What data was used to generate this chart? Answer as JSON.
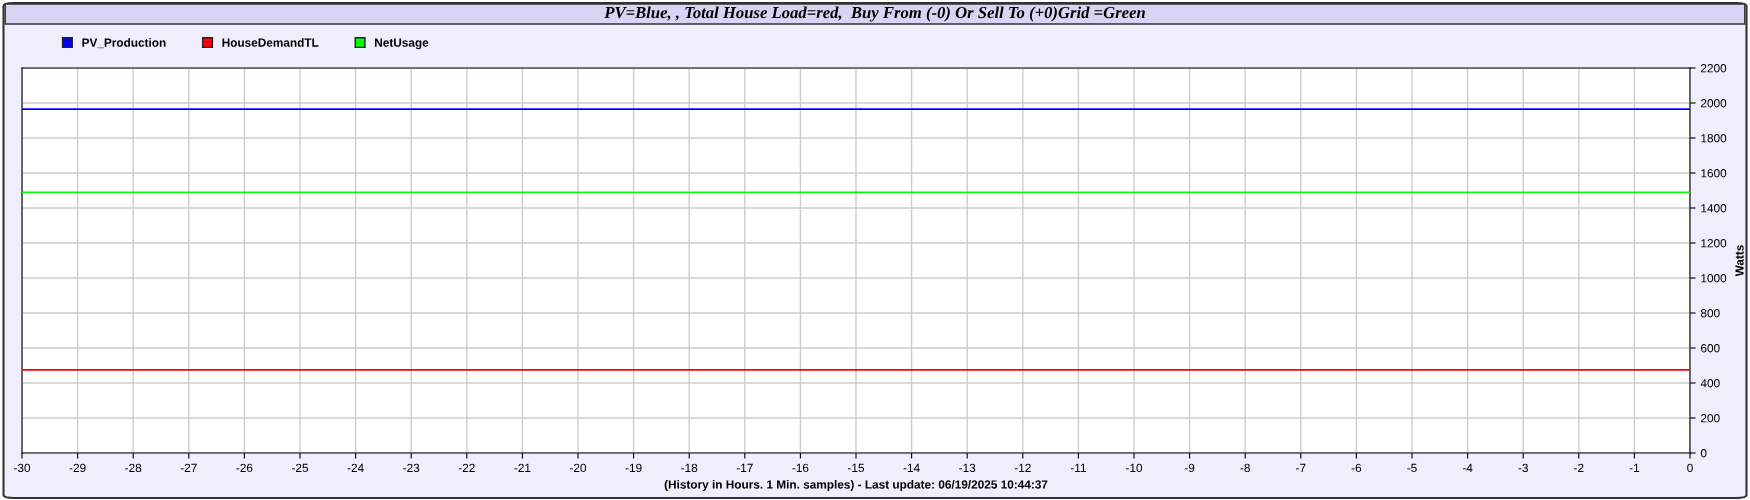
{
  "chart_data": {
    "type": "line",
    "title": "PV=Blue, , Total House Load=red,  Buy From (-0) Or Sell To (+0)Grid =Green",
    "xlabel": "(History in Hours. 1 Min. samples) - Last update: 06/19/2025 10:44:37",
    "ylabel": "Watts",
    "x": [
      -30,
      0
    ],
    "series": [
      {
        "name": "PV_Production",
        "color": "#0000ff",
        "values": [
          1965,
          1965
        ]
      },
      {
        "name": "HouseDemandTL",
        "color": "#ff0000",
        "values": [
          475,
          475
        ]
      },
      {
        "name": "NetUsage",
        "color": "#00ff00",
        "values": [
          1490,
          1490
        ]
      }
    ],
    "xlim": [
      -30,
      0
    ],
    "xticks": [
      -30,
      -29,
      -28,
      -27,
      -26,
      -25,
      -24,
      -23,
      -22,
      -21,
      -20,
      -19,
      -18,
      -17,
      -16,
      -15,
      -14,
      -13,
      -12,
      -11,
      -10,
      -9,
      -8,
      -7,
      -6,
      -5,
      -4,
      -3,
      -2,
      -1,
      0
    ],
    "ylim": [
      0,
      2200
    ],
    "yticks": [
      0,
      200,
      400,
      600,
      800,
      1000,
      1200,
      1400,
      1600,
      1800,
      2000,
      2200
    ],
    "grid": true,
    "legend": "top left",
    "marker": "none",
    "line_style": "solid"
  }
}
